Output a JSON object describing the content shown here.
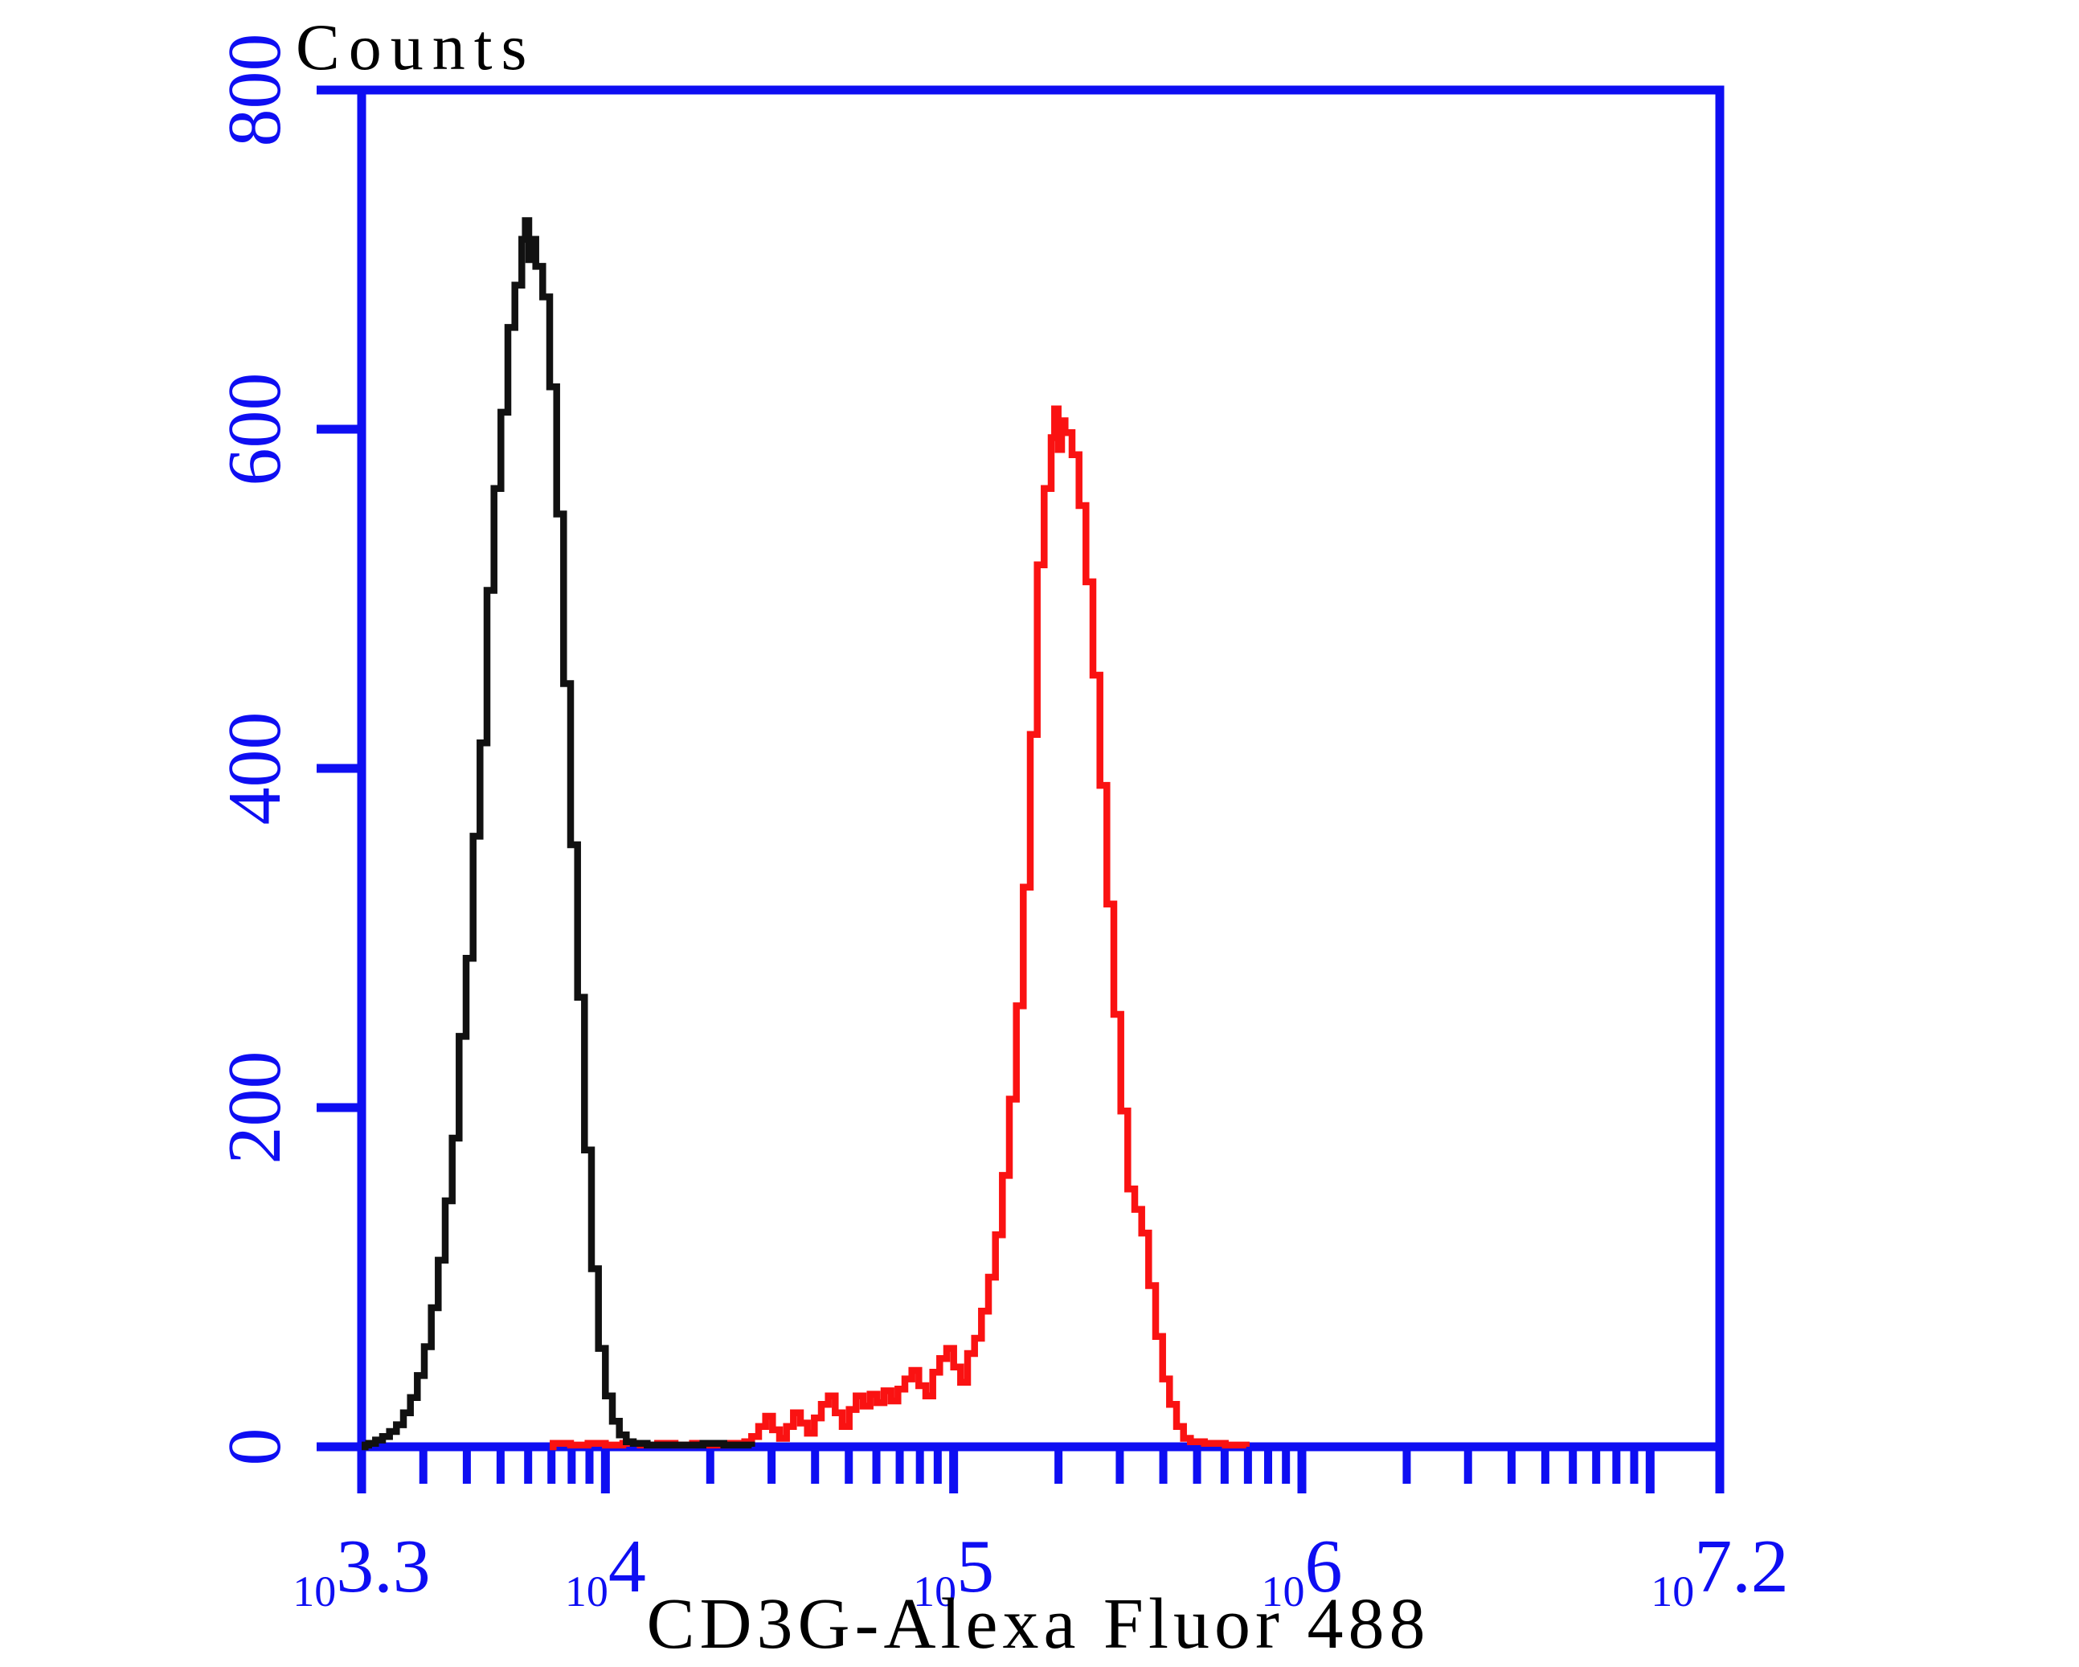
{
  "page": {
    "background": "#ffffff"
  },
  "chart": {
    "title": "Counts",
    "x_label": "CD3G-Alexa Fluor 488",
    "colors": {
      "axis": "#0e0ef2",
      "tick_label": "#0e0ef2",
      "black_series": "#111111",
      "red_series": "#fa1212",
      "title_text": "#000000"
    },
    "y_axis": {
      "min": 0,
      "max": 800,
      "tick_values": [
        0,
        200,
        400,
        600,
        800
      ],
      "tick_labels": [
        "0",
        "200",
        "400",
        "600",
        "800"
      ]
    },
    "x_axis": {
      "scale": "log10",
      "base_label": "10",
      "min_exponent": 3.3,
      "max_exponent": 7.2,
      "major_tick_exponents": [
        3.3,
        4,
        5,
        6,
        7,
        7.2
      ],
      "labeled_ticks": [
        {
          "u": 3.3,
          "text": "3.3"
        },
        {
          "u": 4,
          "text": "4"
        },
        {
          "u": 5,
          "text": "5"
        },
        {
          "u": 6,
          "text": "6"
        },
        {
          "u": 7.2,
          "text": "7.2"
        }
      ]
    }
  },
  "chart_data": {
    "type": "line",
    "subtype": "flow-cytometry-step-histogram",
    "title": "Counts",
    "xlabel": "CD3G-Alexa Fluor 488",
    "ylabel": "Counts",
    "x_scale": "log10",
    "xlim_exponents": [
      3.3,
      7.2
    ],
    "ylim": [
      0,
      800
    ],
    "grid": false,
    "legend_position": "none",
    "series": [
      {
        "name": "black",
        "color": "#111111",
        "peak": {
          "log10_x": 3.77,
          "counts": 723
        },
        "points_log10x_counts": [
          [
            3.3,
            0
          ],
          [
            3.31,
            1
          ],
          [
            3.32,
            2
          ],
          [
            3.34,
            4
          ],
          [
            3.36,
            6
          ],
          [
            3.38,
            9
          ],
          [
            3.4,
            13
          ],
          [
            3.42,
            20
          ],
          [
            3.44,
            29
          ],
          [
            3.46,
            42
          ],
          [
            3.48,
            59
          ],
          [
            3.5,
            82
          ],
          [
            3.52,
            110
          ],
          [
            3.54,
            145
          ],
          [
            3.56,
            182
          ],
          [
            3.58,
            242
          ],
          [
            3.6,
            288
          ],
          [
            3.62,
            360
          ],
          [
            3.64,
            415
          ],
          [
            3.66,
            505
          ],
          [
            3.68,
            565
          ],
          [
            3.7,
            610
          ],
          [
            3.72,
            660
          ],
          [
            3.74,
            685
          ],
          [
            3.76,
            712
          ],
          [
            3.77,
            723
          ],
          [
            3.78,
            700
          ],
          [
            3.79,
            712
          ],
          [
            3.8,
            696
          ],
          [
            3.82,
            678
          ],
          [
            3.84,
            625
          ],
          [
            3.86,
            550
          ],
          [
            3.88,
            450
          ],
          [
            3.9,
            355
          ],
          [
            3.92,
            265
          ],
          [
            3.94,
            175
          ],
          [
            3.96,
            105
          ],
          [
            3.98,
            58
          ],
          [
            4.0,
            30
          ],
          [
            4.02,
            15
          ],
          [
            4.04,
            7
          ],
          [
            4.06,
            3
          ],
          [
            4.08,
            2
          ],
          [
            4.12,
            1
          ],
          [
            4.2,
            1
          ],
          [
            4.28,
            2
          ],
          [
            4.34,
            1
          ],
          [
            4.42,
            0
          ]
        ]
      },
      {
        "name": "red",
        "color": "#fa1212",
        "peak": {
          "log10_x": 5.29,
          "counts": 612
        },
        "points_log10x_counts": [
          [
            3.84,
            0
          ],
          [
            3.85,
            2
          ],
          [
            3.9,
            1
          ],
          [
            3.95,
            2
          ],
          [
            4.0,
            1
          ],
          [
            4.05,
            2
          ],
          [
            4.1,
            1
          ],
          [
            4.15,
            2
          ],
          [
            4.2,
            1
          ],
          [
            4.25,
            2
          ],
          [
            4.3,
            1
          ],
          [
            4.35,
            2
          ],
          [
            4.4,
            3
          ],
          [
            4.42,
            6
          ],
          [
            4.44,
            12
          ],
          [
            4.46,
            18
          ],
          [
            4.48,
            10
          ],
          [
            4.5,
            5
          ],
          [
            4.52,
            12
          ],
          [
            4.54,
            20
          ],
          [
            4.56,
            14
          ],
          [
            4.58,
            8
          ],
          [
            4.6,
            17
          ],
          [
            4.62,
            25
          ],
          [
            4.64,
            30
          ],
          [
            4.66,
            20
          ],
          [
            4.68,
            12
          ],
          [
            4.7,
            22
          ],
          [
            4.72,
            30
          ],
          [
            4.74,
            24
          ],
          [
            4.76,
            31
          ],
          [
            4.78,
            26
          ],
          [
            4.8,
            33
          ],
          [
            4.82,
            27
          ],
          [
            4.84,
            34
          ],
          [
            4.86,
            40
          ],
          [
            4.88,
            45
          ],
          [
            4.9,
            36
          ],
          [
            4.92,
            30
          ],
          [
            4.94,
            44
          ],
          [
            4.96,
            52
          ],
          [
            4.98,
            58
          ],
          [
            5.0,
            47
          ],
          [
            5.02,
            38
          ],
          [
            5.04,
            55
          ],
          [
            5.06,
            64
          ],
          [
            5.08,
            80
          ],
          [
            5.1,
            100
          ],
          [
            5.12,
            125
          ],
          [
            5.14,
            160
          ],
          [
            5.16,
            205
          ],
          [
            5.18,
            260
          ],
          [
            5.2,
            330
          ],
          [
            5.22,
            420
          ],
          [
            5.24,
            520
          ],
          [
            5.26,
            565
          ],
          [
            5.28,
            595
          ],
          [
            5.29,
            612
          ],
          [
            5.3,
            588
          ],
          [
            5.31,
            605
          ],
          [
            5.32,
            598
          ],
          [
            5.34,
            585
          ],
          [
            5.36,
            555
          ],
          [
            5.38,
            510
          ],
          [
            5.4,
            455
          ],
          [
            5.42,
            390
          ],
          [
            5.44,
            320
          ],
          [
            5.46,
            255
          ],
          [
            5.48,
            198
          ],
          [
            5.5,
            152
          ],
          [
            5.52,
            140
          ],
          [
            5.54,
            126
          ],
          [
            5.56,
            95
          ],
          [
            5.58,
            65
          ],
          [
            5.6,
            40
          ],
          [
            5.62,
            25
          ],
          [
            5.64,
            12
          ],
          [
            5.66,
            5
          ],
          [
            5.68,
            3
          ],
          [
            5.72,
            2
          ],
          [
            5.78,
            1
          ],
          [
            5.84,
            0
          ]
        ]
      }
    ]
  }
}
